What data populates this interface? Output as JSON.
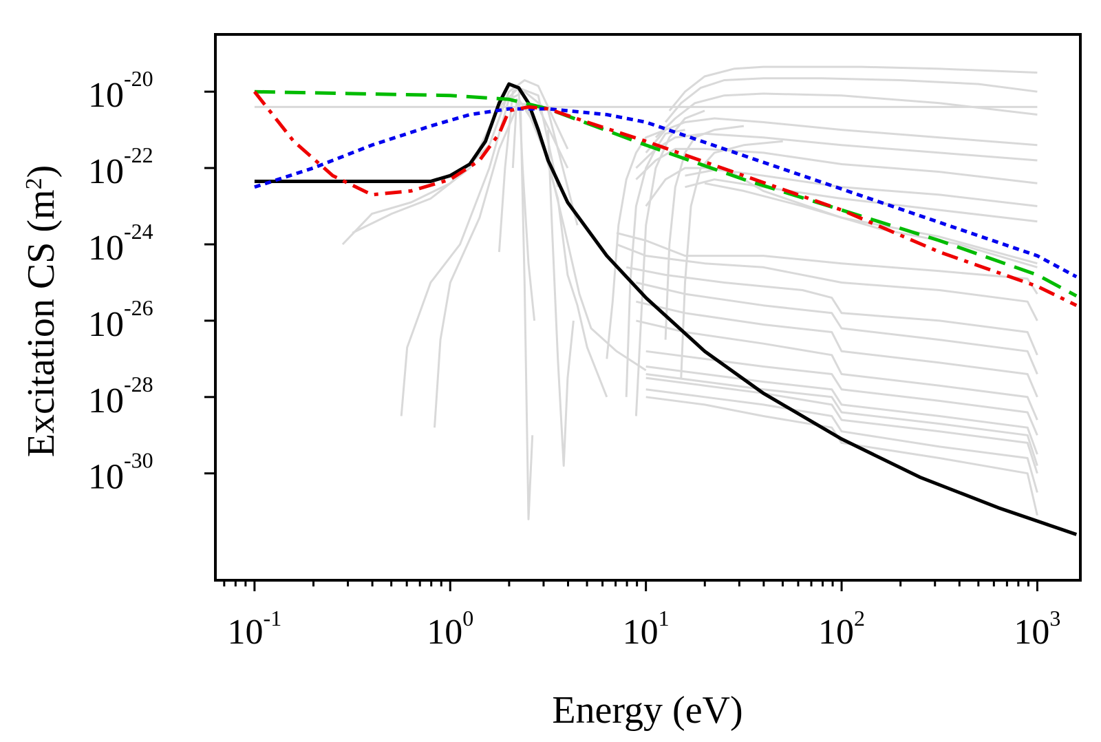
{
  "chart_data": {
    "type": "line",
    "title": "",
    "xlabel": "Energy (eV)",
    "ylabel": {
      "prefix": "Excitation CS (m",
      "exp": "2",
      "suffix": ")"
    },
    "xscale": "log",
    "yscale": "log",
    "xlim_log10": [
      -1.2,
      3.22
    ],
    "ylim_log10": [
      -32.8,
      -18.5
    ],
    "grid": false,
    "legend": "none",
    "x_ticks": [
      {
        "base": "10",
        "exp": "-1",
        "log10": -1
      },
      {
        "base": "10",
        "exp": "0",
        "log10": 0
      },
      {
        "base": "10",
        "exp": "1",
        "log10": 1
      },
      {
        "base": "10",
        "exp": "2",
        "log10": 2
      },
      {
        "base": "10",
        "exp": "3",
        "log10": 3
      }
    ],
    "y_ticks": [
      {
        "base": "10",
        "exp": "-20",
        "log10": -20
      },
      {
        "base": "10",
        "exp": "-22",
        "log10": -22
      },
      {
        "base": "10",
        "exp": "-24",
        "log10": -24
      },
      {
        "base": "10",
        "exp": "-26",
        "log10": -26
      },
      {
        "base": "10",
        "exp": "-28",
        "log10": -28
      },
      {
        "base": "10",
        "exp": "-30",
        "log10": -30
      }
    ],
    "highlight_series": [
      {
        "name": "solid-black",
        "color": "#000000",
        "dash": "solid",
        "x_log10": [
          -1.0,
          -0.5,
          -0.1,
          0.0,
          0.1,
          0.18,
          0.25,
          0.3,
          0.35,
          0.4,
          0.45,
          0.5,
          0.6,
          0.8,
          1.0,
          1.3,
          1.6,
          2.0,
          2.4,
          2.8,
          3.2
        ],
        "y_log10": [
          -22.35,
          -22.35,
          -22.35,
          -22.2,
          -21.9,
          -21.3,
          -20.3,
          -19.8,
          -19.9,
          -20.3,
          -21.0,
          -21.8,
          -22.9,
          -24.3,
          -25.4,
          -26.8,
          -27.9,
          -29.1,
          -30.1,
          -30.9,
          -31.6
        ]
      },
      {
        "name": "dashed-green",
        "color": "#00bb00",
        "dash": "long-dash",
        "x_log10": [
          -1.0,
          -0.5,
          0.0,
          0.3,
          0.5,
          1.0,
          1.5,
          2.0,
          2.5,
          3.0,
          3.2
        ],
        "y_log10": [
          -20.0,
          -20.05,
          -20.1,
          -20.2,
          -20.45,
          -21.4,
          -22.3,
          -23.1,
          -23.9,
          -24.8,
          -25.35
        ]
      },
      {
        "name": "dotted-blue",
        "color": "#0000ee",
        "dash": "dotted",
        "x_log10": [
          -1.0,
          -0.7,
          -0.4,
          -0.1,
          0.1,
          0.3,
          0.5,
          0.8,
          1.0,
          1.4,
          1.8,
          2.2,
          2.6,
          3.0,
          3.2
        ],
        "y_log10": [
          -22.5,
          -22.0,
          -21.4,
          -20.9,
          -20.6,
          -20.45,
          -20.45,
          -20.6,
          -20.8,
          -21.5,
          -22.2,
          -22.9,
          -23.6,
          -24.3,
          -24.85
        ]
      },
      {
        "name": "dashdot-red",
        "color": "#ee0000",
        "dash": "dash-dot",
        "x_log10": [
          -1.0,
          -0.8,
          -0.6,
          -0.4,
          -0.2,
          0.0,
          0.15,
          0.25,
          0.3,
          0.4,
          0.5,
          0.7,
          1.0,
          1.5,
          2.0,
          2.5,
          3.0,
          3.2
        ],
        "y_log10": [
          -20.0,
          -21.3,
          -22.2,
          -22.7,
          -22.6,
          -22.3,
          -21.8,
          -21.1,
          -20.5,
          -20.4,
          -20.45,
          -20.8,
          -21.3,
          -22.2,
          -23.1,
          -24.2,
          -25.1,
          -25.6
        ]
      }
    ],
    "background_series_color": "#d9d9d9",
    "background_series": [
      {
        "x_log10": [
          -1.0,
          3.0
        ],
        "y_log10": [
          -20.4,
          -20.4
        ]
      },
      {
        "x_log10": [
          -0.55,
          -0.4,
          -0.2,
          0.0,
          0.2,
          0.3,
          0.38,
          0.45,
          0.6
        ],
        "y_log10": [
          -24.0,
          -23.2,
          -22.9,
          -22.4,
          -21.4,
          -20.0,
          -19.7,
          -19.85,
          -21.5
        ]
      },
      {
        "x_log10": [
          -0.5,
          -0.3,
          -0.1,
          0.1,
          0.25,
          0.35,
          0.45,
          0.55
        ],
        "y_log10": [
          -23.7,
          -23.2,
          -22.8,
          -22.0,
          -20.4,
          -19.9,
          -20.1,
          -22.5
        ]
      },
      {
        "x_log10": [
          -0.25,
          -0.22,
          -0.1,
          0.05,
          0.2,
          0.3,
          0.38,
          0.5,
          0.65
        ],
        "y_log10": [
          -28.5,
          -26.7,
          -25.0,
          -24.0,
          -22.0,
          -20.2,
          -20.0,
          -20.5,
          -23.5
        ]
      },
      {
        "x_log10": [
          -0.08,
          -0.05,
          0.0,
          0.15,
          0.25,
          0.35,
          0.45,
          0.6
        ],
        "y_log10": [
          -28.8,
          -26.5,
          -25.0,
          -23.3,
          -21.5,
          -20.3,
          -20.4,
          -22.0
        ]
      },
      {
        "x_log10": [
          0.25,
          0.28,
          0.32,
          0.35,
          0.37,
          0.4,
          0.43
        ],
        "y_log10": [
          -24.2,
          -22.0,
          -20.0,
          -19.9,
          -22.0,
          -24.5,
          -26.0
        ]
      },
      {
        "x_log10": [
          0.32,
          0.34,
          0.36,
          0.38,
          0.4,
          0.42
        ],
        "y_log10": [
          -22.0,
          -20.2,
          -20.5,
          -25.0,
          -31.2,
          -29.0
        ]
      },
      {
        "x_log10": [
          0.5,
          0.52,
          0.55,
          0.58,
          0.6,
          0.63
        ],
        "y_log10": [
          -21.0,
          -23.5,
          -27.0,
          -29.8,
          -27.5,
          -26.0
        ]
      },
      {
        "x_log10": [
          0.35,
          0.45,
          0.55,
          0.6,
          0.65,
          0.7,
          0.8
        ],
        "y_log10": [
          -20.2,
          -21.0,
          -22.8,
          -24.8,
          -25.6,
          -26.7,
          -28.0
        ]
      },
      {
        "x_log10": [
          0.38,
          0.5,
          0.58,
          0.66,
          0.72,
          0.85,
          1.0
        ],
        "y_log10": [
          -20.3,
          -21.8,
          -23.5,
          -25.3,
          -26.2,
          -26.8,
          -27.3
        ]
      },
      {
        "x_log10": [
          0.8,
          0.83,
          0.86,
          0.9,
          0.95,
          1.0,
          1.1
        ],
        "y_log10": [
          -27.0,
          -25.5,
          -23.5,
          -22.3,
          -21.6,
          -21.2,
          -21.0
        ]
      },
      {
        "x_log10": [
          0.9,
          0.92,
          0.95,
          1.0,
          1.05,
          1.1,
          1.2
        ],
        "y_log10": [
          -28.0,
          -25.0,
          -23.0,
          -22.0,
          -21.5,
          -21.1,
          -21.0
        ]
      },
      {
        "x_log10": [
          0.95,
          0.97,
          1.0,
          1.05,
          1.12,
          1.2,
          1.3
        ],
        "y_log10": [
          -28.5,
          -26.5,
          -23.5,
          -22.0,
          -21.2,
          -20.7,
          -20.5
        ]
      },
      {
        "x_log10": [
          1.1,
          1.12,
          1.15,
          1.2,
          1.25,
          1.35,
          1.5
        ],
        "y_log10": [
          -26.5,
          -24.0,
          -22.5,
          -21.6,
          -21.2,
          -21.0,
          -20.9
        ]
      },
      {
        "x_log10": [
          1.18,
          1.2,
          1.23,
          1.28,
          1.35,
          1.5,
          1.7
        ],
        "y_log10": [
          -27.5,
          -25.0,
          -23.0,
          -22.0,
          -21.6,
          -21.4,
          -21.3
        ]
      },
      {
        "x_log10": [
          1.12,
          1.2,
          1.3,
          1.45,
          1.6,
          1.8,
          2.1,
          2.5,
          3.0
        ],
        "y_log10": [
          -20.5,
          -20.0,
          -19.6,
          -19.4,
          -19.35,
          -19.35,
          -19.35,
          -19.4,
          -19.5
        ]
      },
      {
        "x_log10": [
          1.1,
          1.18,
          1.28,
          1.4,
          1.6,
          1.9,
          2.3,
          2.7,
          3.0
        ],
        "y_log10": [
          -20.8,
          -20.3,
          -19.9,
          -19.7,
          -19.65,
          -19.65,
          -19.7,
          -19.8,
          -20.0
        ]
      },
      {
        "x_log10": [
          1.05,
          1.15,
          1.25,
          1.4,
          1.6,
          2.0,
          2.5,
          3.0
        ],
        "y_log10": [
          -21.2,
          -20.7,
          -20.3,
          -20.1,
          -20.05,
          -20.1,
          -20.3,
          -20.6
        ]
      },
      {
        "x_log10": [
          1.0,
          1.1,
          1.2,
          1.35,
          1.6,
          2.0,
          2.5,
          3.0
        ],
        "y_log10": [
          -21.6,
          -21.0,
          -20.8,
          -20.7,
          -20.8,
          -21.0,
          -21.2,
          -21.4
        ]
      },
      {
        "x_log10": [
          0.95,
          1.05,
          1.15,
          1.3,
          1.6,
          2.0,
          2.5,
          3.0
        ],
        "y_log10": [
          -22.0,
          -21.5,
          -21.2,
          -21.1,
          -21.2,
          -21.4,
          -21.6,
          -21.8
        ]
      },
      {
        "x_log10": [
          0.95,
          1.05,
          1.15,
          1.3,
          1.6,
          2.0,
          2.5,
          3.0
        ],
        "y_log10": [
          -22.3,
          -21.8,
          -21.5,
          -21.5,
          -21.6,
          -21.9,
          -22.1,
          -22.4
        ]
      },
      {
        "x_log10": [
          1.0,
          1.1,
          1.2,
          1.3,
          1.6,
          2.0,
          2.5,
          3.0
        ],
        "y_log10": [
          -23.0,
          -22.3,
          -22.0,
          -22.0,
          -22.2,
          -22.5,
          -22.7,
          -23.0
        ]
      },
      {
        "x_log10": [
          1.2,
          1.35,
          1.6,
          2.0,
          2.5,
          3.0
        ],
        "y_log10": [
          -22.5,
          -22.3,
          -22.5,
          -22.8,
          -23.1,
          -23.4
        ]
      },
      {
        "x_log10": [
          1.2,
          1.4,
          1.6,
          2.0,
          2.5,
          3.0
        ],
        "y_log10": [
          -22.2,
          -22.0,
          -22.6,
          -23.3,
          -23.8,
          -24.5
        ]
      },
      {
        "x_log10": [
          1.3,
          1.5,
          1.8,
          2.2,
          2.6,
          3.0
        ],
        "y_log10": [
          -22.4,
          -22.6,
          -23.0,
          -23.6,
          -24.0,
          -24.6
        ]
      },
      {
        "x_log10": [
          0.85,
          1.0,
          1.2,
          1.6,
          2.0,
          2.5,
          2.95,
          3.0
        ],
        "y_log10": [
          -23.7,
          -23.9,
          -24.3,
          -24.3,
          -24.5,
          -24.7,
          -24.9,
          -25.3
        ]
      },
      {
        "x_log10": [
          0.85,
          1.0,
          1.3,
          1.6,
          2.0,
          2.5,
          2.95,
          3.0
        ],
        "y_log10": [
          -24.0,
          -24.3,
          -24.5,
          -24.6,
          -25.0,
          -25.2,
          -25.5,
          -26.0
        ]
      },
      {
        "x_log10": [
          0.9,
          1.1,
          1.4,
          1.8,
          1.95,
          2.0,
          2.5,
          2.95,
          3.0
        ],
        "y_log10": [
          -24.6,
          -24.8,
          -25.0,
          -25.2,
          -25.4,
          -25.8,
          -26.0,
          -26.3,
          -26.9
        ]
      },
      {
        "x_log10": [
          0.95,
          1.2,
          1.6,
          1.95,
          2.0,
          2.5,
          2.95,
          3.0
        ],
        "y_log10": [
          -25.0,
          -25.3,
          -25.6,
          -25.8,
          -26.2,
          -26.5,
          -26.8,
          -27.4
        ]
      },
      {
        "x_log10": [
          0.95,
          1.2,
          1.6,
          1.95,
          2.0,
          2.5,
          2.95,
          3.0
        ],
        "y_log10": [
          -25.5,
          -25.8,
          -26.1,
          -26.3,
          -26.8,
          -27.1,
          -27.4,
          -28.0
        ]
      },
      {
        "x_log10": [
          0.95,
          1.2,
          1.6,
          1.95,
          2.0,
          2.5,
          2.95,
          3.0
        ],
        "y_log10": [
          -26.0,
          -26.3,
          -26.6,
          -26.9,
          -27.4,
          -27.7,
          -28.0,
          -28.6
        ]
      },
      {
        "x_log10": [
          1.0,
          1.3,
          1.6,
          1.95,
          2.0,
          2.5,
          2.95,
          3.0
        ],
        "y_log10": [
          -26.8,
          -27.0,
          -27.2,
          -27.4,
          -27.8,
          -28.1,
          -28.4,
          -29.0
        ]
      },
      {
        "x_log10": [
          1.0,
          1.3,
          1.6,
          1.95,
          2.0,
          2.5,
          2.95,
          3.0
        ],
        "y_log10": [
          -27.2,
          -27.4,
          -27.6,
          -27.8,
          -28.2,
          -28.5,
          -28.8,
          -29.5
        ]
      },
      {
        "x_log10": [
          1.0,
          1.3,
          1.6,
          1.95,
          2.0,
          2.5,
          2.95,
          3.0
        ],
        "y_log10": [
          -27.5,
          -27.7,
          -27.9,
          -28.2,
          -28.6,
          -28.9,
          -29.2,
          -30.0
        ]
      },
      {
        "x_log10": [
          1.0,
          1.3,
          1.6,
          1.95,
          2.0,
          2.5,
          2.95,
          3.0
        ],
        "y_log10": [
          -27.8,
          -28.0,
          -28.2,
          -28.5,
          -28.9,
          -29.3,
          -29.6,
          -30.5
        ]
      },
      {
        "x_log10": [
          1.0,
          1.3,
          1.6,
          1.95,
          2.0,
          2.5,
          2.95,
          3.0
        ],
        "y_log10": [
          -28.0,
          -28.2,
          -28.5,
          -28.8,
          -29.2,
          -29.6,
          -30.0,
          -31.1
        ]
      },
      {
        "x_log10": [
          1.0,
          1.3,
          1.6,
          1.95,
          2.0,
          2.5,
          2.95,
          3.0
        ],
        "y_log10": [
          -27.4,
          -27.6,
          -27.8,
          -28.0,
          -28.4,
          -28.7,
          -29.0,
          -29.8
        ]
      }
    ]
  }
}
